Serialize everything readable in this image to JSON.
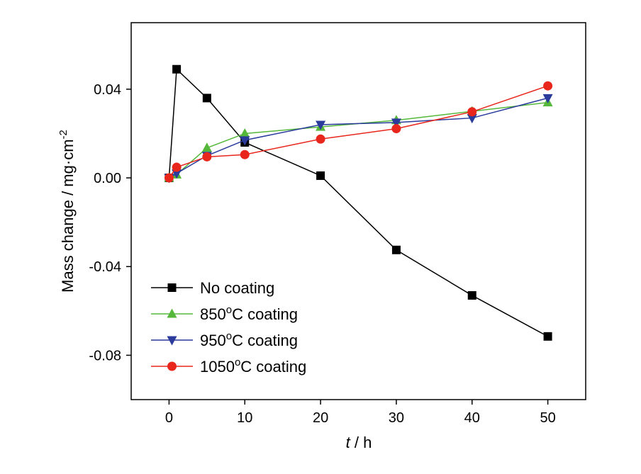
{
  "chart_data": {
    "type": "line",
    "xlabel": "h",
    "xlabel_var": "t",
    "xlabel_sep": " / ",
    "ylabel": "Mass change / mg·cm",
    "ylabel_exp": "-2",
    "xlim": [
      -5,
      55
    ],
    "ylim": [
      -0.1,
      0.07
    ],
    "xticks": [
      0,
      10,
      20,
      30,
      40,
      50
    ],
    "xtick_labels": [
      "0",
      "10",
      "20",
      "30",
      "40",
      "50"
    ],
    "yticks": [
      -0.08,
      -0.04,
      0.0,
      0.04
    ],
    "ytick_labels": [
      "-0.08",
      "-0.04",
      "0.00",
      "0.04"
    ],
    "grid": false,
    "legend_position": "lower-left",
    "series": [
      {
        "name": "No coating",
        "color": "#000000",
        "marker": "square",
        "x": [
          0,
          1,
          5,
          10,
          20,
          30,
          40,
          50
        ],
        "y": [
          0.0,
          0.049,
          0.036,
          0.016,
          0.001,
          -0.0325,
          -0.053,
          -0.0715
        ]
      },
      {
        "name": "850°C coating",
        "name_prefix": "850",
        "name_sup": "o",
        "name_suffix": "C coating",
        "color": "#55b83a",
        "marker": "triangle-up",
        "x": [
          0,
          1,
          5,
          10,
          20,
          30,
          40,
          50
        ],
        "y": [
          0.0,
          0.0015,
          0.0135,
          0.02,
          0.023,
          0.026,
          0.03,
          0.034
        ]
      },
      {
        "name": "950°C coating",
        "name_prefix": "950",
        "name_sup": "o",
        "name_suffix": "C coating",
        "color": "#2a3b9c",
        "marker": "triangle-down",
        "x": [
          0,
          1,
          5,
          10,
          20,
          30,
          40,
          50
        ],
        "y": [
          0.0,
          0.002,
          0.01,
          0.017,
          0.024,
          0.025,
          0.027,
          0.036
        ]
      },
      {
        "name": "1050°C coating",
        "name_prefix": "1050",
        "name_sup": "o",
        "name_suffix": "C coating",
        "color": "#e8261c",
        "marker": "circle",
        "x": [
          0,
          1,
          5,
          10,
          20,
          30,
          40,
          50
        ],
        "y": [
          0.0,
          0.0048,
          0.0095,
          0.0105,
          0.0175,
          0.0222,
          0.0298,
          0.0415
        ]
      }
    ]
  }
}
